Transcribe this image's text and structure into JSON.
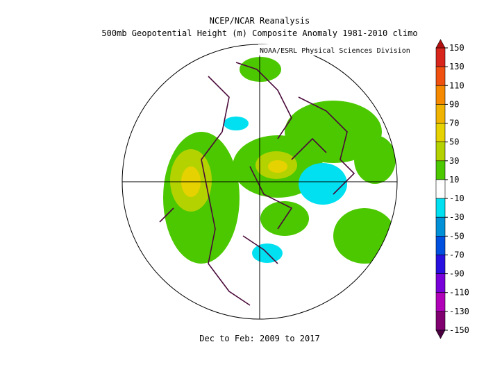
{
  "map": {
    "title": "NCEP/NCAR Reanalysis",
    "subtitle": "500mb Geopotential Height (m) Composite Anomaly 1981-2010 climo",
    "credit": "NOAA/ESRL Physical Sciences Division",
    "footer": "Dec to Feb: 2009 to 2017",
    "colorbar": {
      "levels": [
        150,
        130,
        110,
        90,
        70,
        50,
        30,
        10,
        -10,
        -30,
        -50,
        -70,
        -90,
        -110,
        -130,
        -150
      ],
      "colors": [
        "#d8261c",
        "#f05010",
        "#f58a00",
        "#f0b400",
        "#e6d200",
        "#b4d200",
        "#4cc800",
        "#ffffff",
        "#00e0f0",
        "#0090d8",
        "#0050e0",
        "#2810e0",
        "#7800d8",
        "#b000b8",
        "#800070"
      ],
      "over_color": "#b01010",
      "under_color": "#4a0040"
    }
  }
}
